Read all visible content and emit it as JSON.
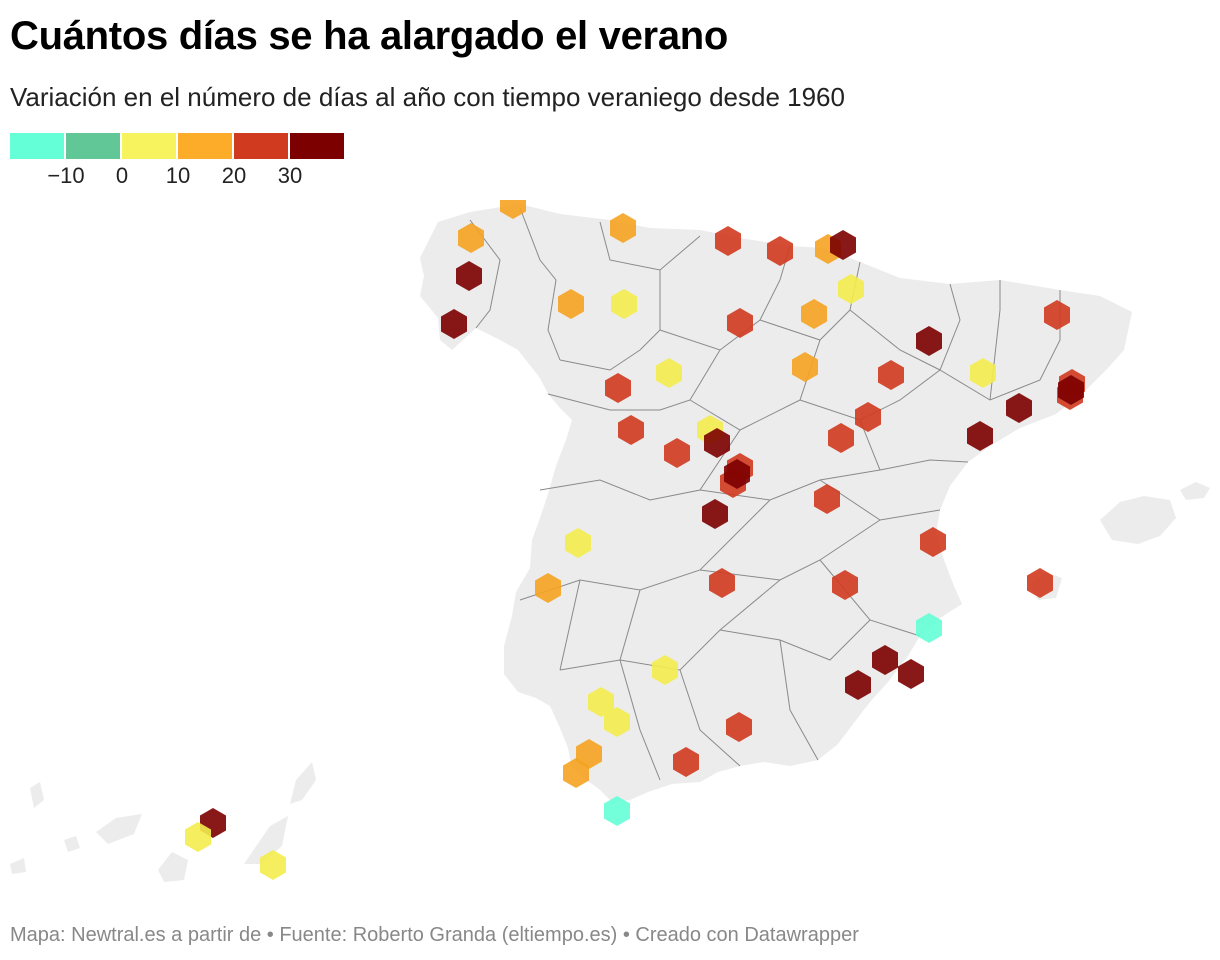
{
  "header": {
    "title": "Cuántos días se ha alargado el verano",
    "subtitle": "Variación en el número de días al año con tiempo veraniego desde 1960"
  },
  "legend": {
    "bins": [
      {
        "from": -15,
        "to": -10,
        "color": "#64ffd6"
      },
      {
        "from": -10,
        "to": 0,
        "color": "#61c796"
      },
      {
        "from": 0,
        "to": 10,
        "color": "#f7f35e"
      },
      {
        "from": 10,
        "to": 20,
        "color": "#fdac2a"
      },
      {
        "from": 20,
        "to": 30,
        "color": "#d03a1e"
      },
      {
        "from": 30,
        "to": 40,
        "color": "#7c0000"
      }
    ],
    "ticks": [
      "−10",
      "0",
      "10",
      "20",
      "30"
    ]
  },
  "footer": {
    "text": "Mapa: Newtral.es a partir de  • Fuente: Roberto Granda (eltiempo.es) • Creado con Datawrapper"
  },
  "map": {
    "land_color": "#ececec",
    "border_color": "#8a8a8a"
  },
  "colors": {
    "cyan": "#64ffd6",
    "yellow": "#f4ed4e",
    "orange": "#f5a320",
    "red": "#d03a1e",
    "darkred": "#7c0000"
  }
}
